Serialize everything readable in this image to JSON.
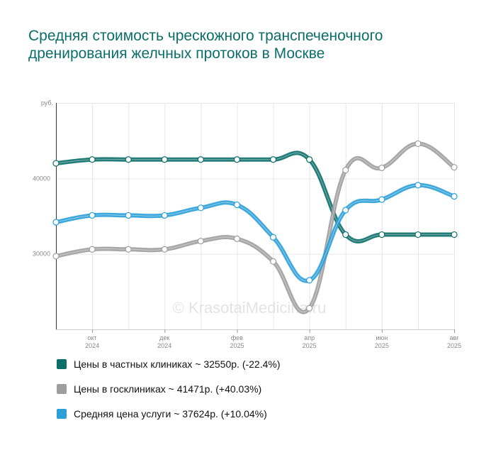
{
  "title": "Средняя стоимость чрескожного транспеченочного дренирования желчных протоков в Москве",
  "watermark": "© KrasotaiMedicina.ru",
  "chart_data": {
    "type": "line",
    "title": "Средняя стоимость чрескожного транспеченочного дренирования желчных протоков в Москве",
    "ylabel": "руб.",
    "ylim": [
      20000,
      50000
    ],
    "yticks": [
      30000,
      40000
    ],
    "ytick_labels": [
      "30000",
      "40000"
    ],
    "x": [
      "сен 2024",
      "окт 2024",
      "ноя 2024",
      "дек 2024",
      "янв 2025",
      "фев 2025",
      "мар 2025",
      "апр 2025",
      "май 2025",
      "июн 2025",
      "июл 2025",
      "авг 2025"
    ],
    "xtick_labels": [
      {
        "index": 1,
        "line1": "окт",
        "line2": "2024"
      },
      {
        "index": 3,
        "line1": "дек",
        "line2": "2024"
      },
      {
        "index": 5,
        "line1": "фев",
        "line2": "2025"
      },
      {
        "index": 7,
        "line1": "апр",
        "line2": "2025"
      },
      {
        "index": 9,
        "line1": "июн",
        "line2": "2025"
      },
      {
        "index": 11,
        "line1": "авг",
        "line2": "2025"
      }
    ],
    "grid": true,
    "legend_position": "bottom",
    "series": [
      {
        "name": "Цены в частных клиниках",
        "color": "#0b6e69",
        "values": [
          42000,
          42500,
          42500,
          42500,
          42500,
          42500,
          42500,
          42500,
          32550,
          32550,
          32550,
          32550
        ]
      },
      {
        "name": "Цены в госклиниках",
        "color": "#9e9e9e",
        "values": [
          29700,
          30600,
          30600,
          30600,
          31700,
          32000,
          29000,
          22800,
          41100,
          41400,
          44600,
          41471
        ]
      },
      {
        "name": "Средняя цена услуги",
        "color": "#2a9fd8",
        "values": [
          34200,
          35100,
          35100,
          35100,
          36100,
          36500,
          32200,
          26500,
          35800,
          37200,
          39100,
          37624
        ]
      }
    ]
  },
  "legend": [
    {
      "label": "Цены в частных клиниках ~ 32550р. (-22.4%)",
      "color": "#0b6e69"
    },
    {
      "label": "Цены в госклиниках ~ 41471р. (+40.03%)",
      "color": "#9e9e9e"
    },
    {
      "label": "Средняя цена услуги ~ 37624р. (+10.04%)",
      "color": "#2a9fd8"
    }
  ]
}
